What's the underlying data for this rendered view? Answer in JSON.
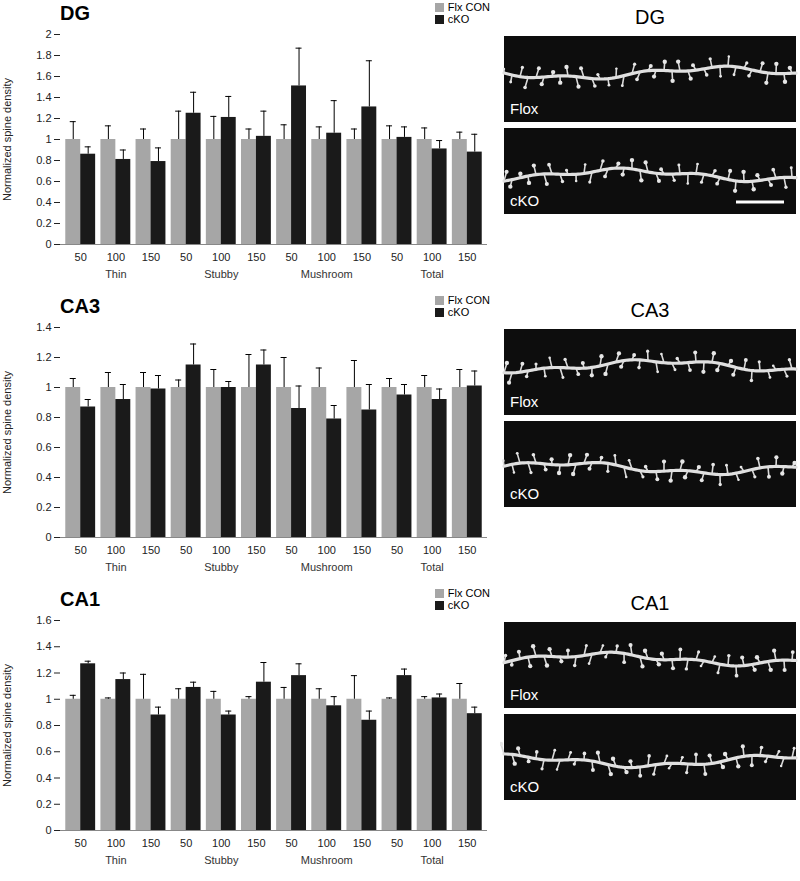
{
  "chart_data": [
    {
      "type": "bar",
      "title": "DG",
      "ylabel": "Normalized spine density",
      "categories": [
        "50",
        "100",
        "150",
        "50",
        "100",
        "150",
        "50",
        "100",
        "150",
        "50",
        "100",
        "150"
      ],
      "groups": [
        "Thin",
        "Stubby",
        "Mushroom",
        "Total"
      ],
      "series": [
        {
          "name": "Flx CON",
          "color": "#a6a6a6",
          "values": [
            1,
            1,
            1,
            1,
            1,
            1,
            1,
            1,
            1,
            1,
            1,
            1
          ],
          "errors": [
            0.17,
            0.13,
            0.1,
            0.27,
            0.22,
            0.1,
            0.14,
            0.12,
            0.1,
            0.13,
            0.11,
            0.07
          ]
        },
        {
          "name": "cKO",
          "color": "#1a1a1a",
          "values": [
            0.86,
            0.81,
            0.79,
            1.25,
            1.21,
            1.03,
            1.51,
            1.06,
            1.31,
            1.02,
            0.91,
            0.88
          ],
          "errors": [
            0.07,
            0.09,
            0.13,
            0.2,
            0.2,
            0.24,
            0.36,
            0.31,
            0.44,
            0.1,
            0.08,
            0.17
          ]
        }
      ],
      "ylim": [
        0,
        2
      ],
      "yticks": [
        0,
        0.2,
        0.4,
        0.6,
        0.8,
        1,
        1.2,
        1.4,
        1.6,
        1.8,
        2
      ],
      "grid": false,
      "legend": "top-right",
      "image_title": "DG",
      "image_labels": [
        "Flox",
        "cKO"
      ]
    },
    {
      "type": "bar",
      "title": "CA3",
      "ylabel": "Normalized spine density",
      "categories": [
        "50",
        "100",
        "150",
        "50",
        "100",
        "150",
        "50",
        "100",
        "150",
        "50",
        "100",
        "150"
      ],
      "groups": [
        "Thin",
        "Stubby",
        "Mushroom",
        "Total"
      ],
      "series": [
        {
          "name": "Flx CON",
          "color": "#a6a6a6",
          "values": [
            1,
            1,
            1,
            1,
            1,
            1,
            1,
            1,
            1,
            1,
            1,
            1
          ],
          "errors": [
            0.06,
            0.1,
            0.1,
            0.05,
            0.12,
            0.22,
            0.2,
            0.13,
            0.18,
            0.06,
            0.08,
            0.12
          ]
        },
        {
          "name": "cKO",
          "color": "#1a1a1a",
          "values": [
            0.87,
            0.92,
            0.99,
            1.15,
            1,
            1.15,
            0.86,
            0.79,
            0.85,
            0.95,
            0.92,
            1.01
          ],
          "errors": [
            0.05,
            0.1,
            0.09,
            0.14,
            0.04,
            0.1,
            0.15,
            0.09,
            0.17,
            0.07,
            0.07,
            0.1
          ]
        }
      ],
      "ylim": [
        0,
        1.4
      ],
      "yticks": [
        0,
        0.2,
        0.4,
        0.6,
        0.8,
        1,
        1.2,
        1.4
      ],
      "grid": false,
      "legend": "top-right",
      "image_title": "CA3",
      "image_labels": [
        "Flox",
        "cKO"
      ]
    },
    {
      "type": "bar",
      "title": "CA1",
      "ylabel": "Normalized spine density",
      "categories": [
        "50",
        "100",
        "150",
        "50",
        "100",
        "150",
        "50",
        "100",
        "150",
        "50",
        "100",
        "150"
      ],
      "groups": [
        "Thin",
        "Stubby",
        "Mushroom",
        "Total"
      ],
      "series": [
        {
          "name": "Flx CON",
          "color": "#a6a6a6",
          "values": [
            1,
            1,
            1,
            1,
            1,
            1,
            1,
            1,
            1,
            1,
            1,
            1
          ],
          "errors": [
            0.03,
            0.01,
            0.19,
            0.08,
            0.06,
            0.02,
            0.09,
            0.08,
            0.18,
            0.01,
            0.02,
            0.12
          ]
        },
        {
          "name": "cKO",
          "color": "#1a1a1a",
          "values": [
            1.27,
            1.15,
            0.88,
            1.09,
            0.88,
            1.13,
            1.18,
            0.95,
            0.84,
            1.18,
            1.01,
            0.89
          ],
          "errors": [
            0.02,
            0.05,
            0.06,
            0.04,
            0.03,
            0.15,
            0.09,
            0.07,
            0.07,
            0.05,
            0.03,
            0.05
          ]
        }
      ],
      "ylim": [
        0,
        1.6
      ],
      "yticks": [
        0,
        0.2,
        0.4,
        0.6,
        0.8,
        1,
        1.2,
        1.4,
        1.6
      ],
      "grid": false,
      "legend": "top-right",
      "image_title": "CA1",
      "image_labels": [
        "Flox",
        "cKO"
      ]
    }
  ]
}
